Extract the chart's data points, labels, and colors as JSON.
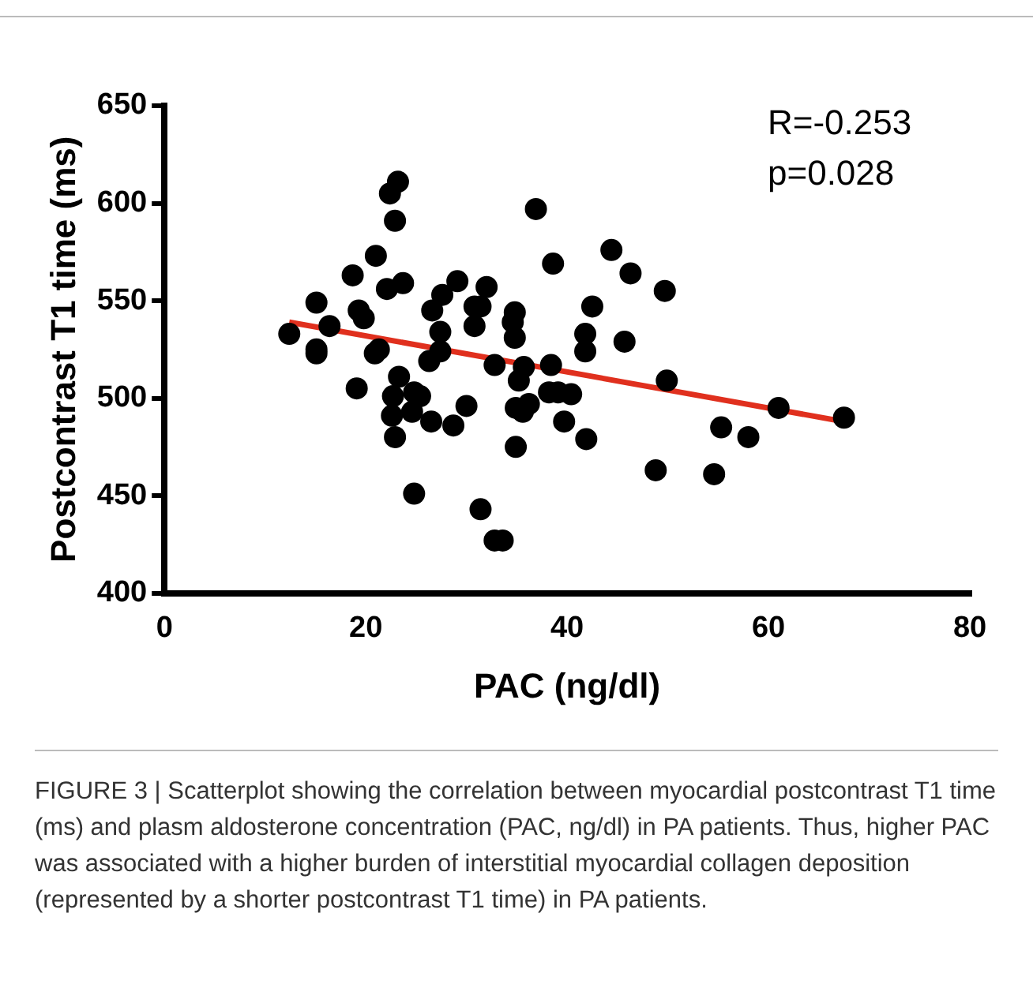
{
  "chart_data": {
    "type": "scatter",
    "xlabel": "PAC (ng/dl)",
    "ylabel": "Postcontrast T1 time (ms)",
    "xlim": [
      0,
      80
    ],
    "xticks": [
      0,
      20,
      40,
      60,
      80
    ],
    "ylim": [
      400,
      650
    ],
    "yticks": [
      400,
      450,
      500,
      550,
      600,
      650
    ],
    "grid": false,
    "legend": false,
    "marker": "circle",
    "series": [
      {
        "color": "#000000",
        "x": [
          12.4,
          15.1,
          15.1,
          15.1,
          16.4,
          18.7,
          19.3,
          19.8,
          19.1,
          21.0,
          20.9,
          21.3,
          22.1,
          23.7,
          22.4,
          23.2,
          22.9,
          23.3,
          22.7,
          22.6,
          22.9,
          24.6,
          24.8,
          25.4,
          24.8,
          26.5,
          26.3,
          27.4,
          27.4,
          26.6,
          27.6,
          29.1,
          28.7,
          30.0,
          30.8,
          31.4,
          30.8,
          32.0,
          32.8,
          31.4,
          32.8,
          33.6,
          36.9,
          34.8,
          34.6,
          34.8,
          35.7,
          35.2,
          34.9,
          36.2,
          35.6,
          34.9,
          38.6,
          38.4,
          38.2,
          39.1,
          40.4,
          39.7,
          41.8,
          41.8,
          42.5,
          41.9,
          44.4,
          46.3,
          49.7,
          45.7,
          49.9,
          48.8,
          55.3,
          58.0,
          54.6,
          61.0,
          67.5
        ],
        "values": [
          533,
          549,
          525,
          523,
          537,
          563,
          545,
          541,
          505,
          573,
          523,
          525,
          556,
          559,
          605,
          611,
          591,
          511,
          501,
          491,
          480,
          493,
          503,
          501,
          451,
          488,
          519,
          524,
          534,
          545,
          553,
          560,
          486,
          496,
          547,
          547,
          537,
          557,
          517,
          443,
          427,
          427,
          597,
          544,
          539,
          531,
          516,
          509,
          495,
          497,
          493,
          475,
          569,
          517,
          503,
          503,
          502,
          488,
          533,
          524,
          547,
          479,
          576,
          564,
          555,
          529,
          509,
          463,
          485,
          480,
          461,
          495,
          490
        ]
      },
      {
        "type": "line",
        "color": "#e0301e",
        "marker": "none",
        "x": [
          12.4,
          67.5
        ],
        "values": [
          539,
          488
        ]
      }
    ],
    "annotations": [
      "R=-0.253",
      "p=0.028",
      "FIGURE 3 | Scatterplot showing the correlation between myocardial postcontrast T1 time (ms) and plasm aldosterone concentration (PAC, ng/dl) in PA patients. Thus, higher PAC was associated with a higher burden of interstitial myocardial collagen deposition (represented by a shorter postcontrast T1 time) in PA patients."
    ]
  }
}
